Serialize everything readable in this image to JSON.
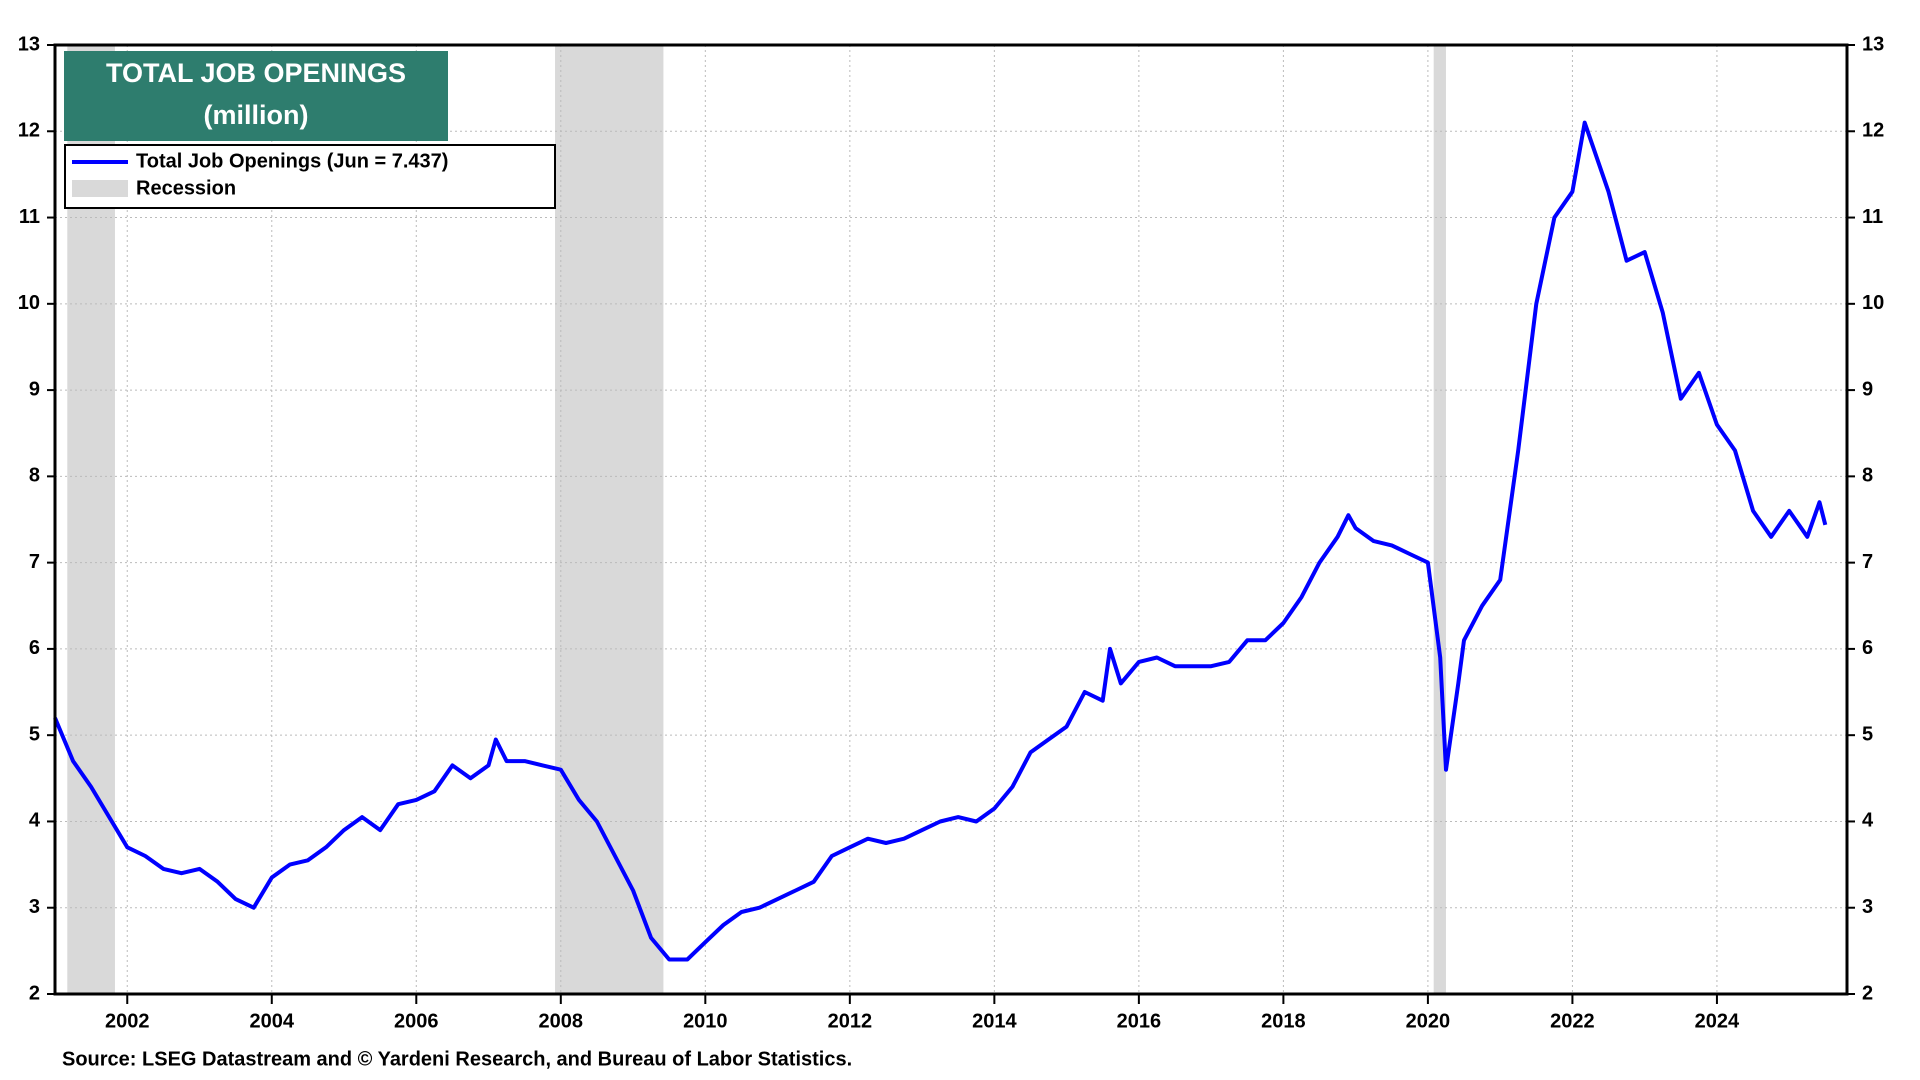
{
  "chart_data": {
    "type": "line",
    "title": "TOTAL JOB OPENINGS",
    "subtitle": "(million)",
    "source": "Source: LSEG Datastream and © Yardeni Research, and Bureau of Labor Statistics.",
    "x": [
      2001.0,
      2001.25,
      2001.5,
      2001.75,
      2002.0,
      2002.25,
      2002.5,
      2002.75,
      2003.0,
      2003.25,
      2003.5,
      2003.75,
      2004.0,
      2004.25,
      2004.5,
      2004.75,
      2005.0,
      2005.25,
      2005.5,
      2005.75,
      2006.0,
      2006.25,
      2006.5,
      2006.75,
      2007.0,
      2007.1,
      2007.25,
      2007.5,
      2007.75,
      2008.0,
      2008.25,
      2008.5,
      2008.75,
      2009.0,
      2009.25,
      2009.5,
      2009.75,
      2010.0,
      2010.25,
      2010.5,
      2010.75,
      2011.0,
      2011.25,
      2011.5,
      2011.75,
      2012.0,
      2012.25,
      2012.5,
      2012.75,
      2013.0,
      2013.25,
      2013.5,
      2013.75,
      2014.0,
      2014.25,
      2014.5,
      2014.75,
      2015.0,
      2015.25,
      2015.5,
      2015.6,
      2015.75,
      2016.0,
      2016.25,
      2016.5,
      2016.75,
      2017.0,
      2017.25,
      2017.5,
      2017.75,
      2018.0,
      2018.25,
      2018.5,
      2018.75,
      2018.9,
      2019.0,
      2019.25,
      2019.5,
      2019.75,
      2020.0,
      2020.17,
      2020.25,
      2020.42,
      2020.5,
      2020.75,
      2021.0,
      2021.25,
      2021.5,
      2021.75,
      2022.0,
      2022.17,
      2022.5,
      2022.75,
      2023.0,
      2023.25,
      2023.5,
      2023.75,
      2024.0,
      2024.25,
      2024.5,
      2024.75,
      2025.0,
      2025.25,
      2025.42,
      2025.5
    ],
    "series": [
      {
        "name": "Total Job Openings (Jun = 7.437)",
        "color": "#0000ff",
        "values": [
          5.2,
          4.7,
          4.4,
          4.05,
          3.7,
          3.6,
          3.45,
          3.4,
          3.45,
          3.3,
          3.1,
          3.0,
          3.35,
          3.5,
          3.55,
          3.7,
          3.9,
          4.05,
          3.9,
          4.2,
          4.25,
          4.35,
          4.65,
          4.5,
          4.65,
          4.95,
          4.7,
          4.7,
          4.65,
          4.6,
          4.25,
          4.0,
          3.6,
          3.2,
          2.65,
          2.4,
          2.4,
          2.6,
          2.8,
          2.95,
          3.0,
          3.1,
          3.2,
          3.3,
          3.6,
          3.7,
          3.8,
          3.75,
          3.8,
          3.9,
          4.0,
          4.05,
          4.0,
          4.15,
          4.4,
          4.8,
          4.95,
          5.1,
          5.5,
          5.4,
          6.0,
          5.6,
          5.85,
          5.9,
          5.8,
          5.8,
          5.8,
          5.85,
          6.1,
          6.1,
          6.3,
          6.6,
          7.0,
          7.3,
          7.55,
          7.4,
          7.25,
          7.2,
          7.1,
          7.0,
          5.9,
          4.6,
          5.6,
          6.1,
          6.5,
          6.8,
          8.3,
          10.0,
          11.0,
          11.3,
          12.1,
          11.3,
          10.5,
          10.6,
          9.9,
          8.9,
          9.2,
          8.6,
          8.3,
          7.6,
          7.3,
          7.6,
          7.3,
          7.7,
          7.437
        ]
      }
    ],
    "recession": {
      "name": "Recession",
      "color": "#d9d9d9",
      "periods": [
        [
          2001.17,
          2001.83
        ],
        [
          2007.92,
          2009.42
        ],
        [
          2020.08,
          2020.25
        ]
      ]
    },
    "xlim": [
      2001,
      2025.8
    ],
    "xticks": [
      2002,
      2004,
      2006,
      2008,
      2010,
      2012,
      2014,
      2016,
      2018,
      2020,
      2022,
      2024
    ],
    "ylim": [
      2,
      13
    ],
    "yticks": [
      2,
      3,
      4,
      5,
      6,
      7,
      8,
      9,
      10,
      11,
      12,
      13
    ],
    "grid": true
  }
}
